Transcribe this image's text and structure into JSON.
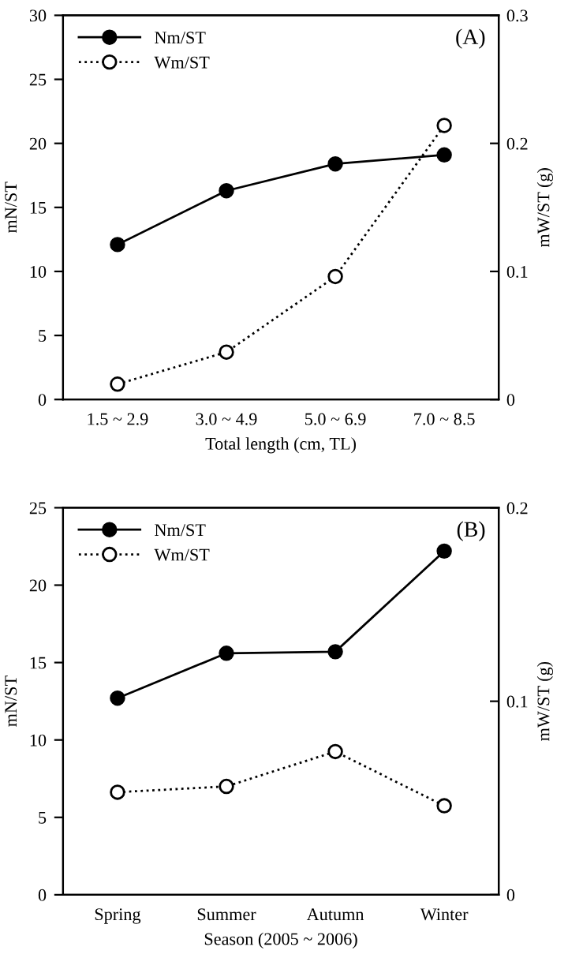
{
  "chart_data": [
    {
      "type": "line",
      "annotations": [
        "(A)"
      ],
      "xlabel": "Total length (cm, TL)",
      "ylabel": "mN/ST",
      "y2label": "mW/ST (g)",
      "categories": [
        "1.5 ~ 2.9",
        "3.0 ~ 4.9",
        "5.0 ~ 6.9",
        "7.0 ~ 8.5"
      ],
      "series": [
        {
          "name": "Nm/ST",
          "color": "#000000",
          "values": [
            12.1,
            16.3,
            18.4,
            19.1
          ],
          "marker": "circle",
          "line_style": "solid"
        },
        {
          "name": "Wm/ST",
          "color": "#000000",
          "values": [
            0.012,
            0.037,
            0.096,
            0.214
          ],
          "marker": "circle",
          "line_style": "dotted",
          "axis": "y2"
        }
      ],
      "ylim": [
        0,
        30
      ],
      "yticks": [
        0,
        5,
        10,
        15,
        20,
        25,
        30
      ],
      "y2lim": [
        0,
        0.3
      ],
      "y2ticks": [
        0,
        0.1,
        0.2,
        0.3
      ],
      "legend": "top left",
      "grid": false
    },
    {
      "type": "line",
      "annotations": [
        "(B)"
      ],
      "xlabel": "Season (2005 ~ 2006)",
      "ylabel": "mN/ST",
      "y2label": "mW/ST (g)",
      "categories": [
        "Spring",
        "Summer",
        "Autumn",
        "Winter"
      ],
      "series": [
        {
          "name": "Nm/ST",
          "color": "#000000",
          "values": [
            12.7,
            15.6,
            15.7,
            22.2
          ],
          "marker": "circle",
          "line_style": "solid"
        },
        {
          "name": "Wm/ST",
          "color": "#000000",
          "values": [
            0.053,
            0.056,
            0.074,
            0.046
          ],
          "marker": "circle",
          "line_style": "dotted",
          "axis": "y2"
        }
      ],
      "ylim": [
        0,
        25
      ],
      "yticks": [
        0,
        5,
        10,
        15,
        20,
        25
      ],
      "y2lim": [
        0,
        0.2
      ],
      "y2ticks": [
        0,
        0.1,
        0.2
      ],
      "legend": "top left",
      "grid": false
    }
  ]
}
